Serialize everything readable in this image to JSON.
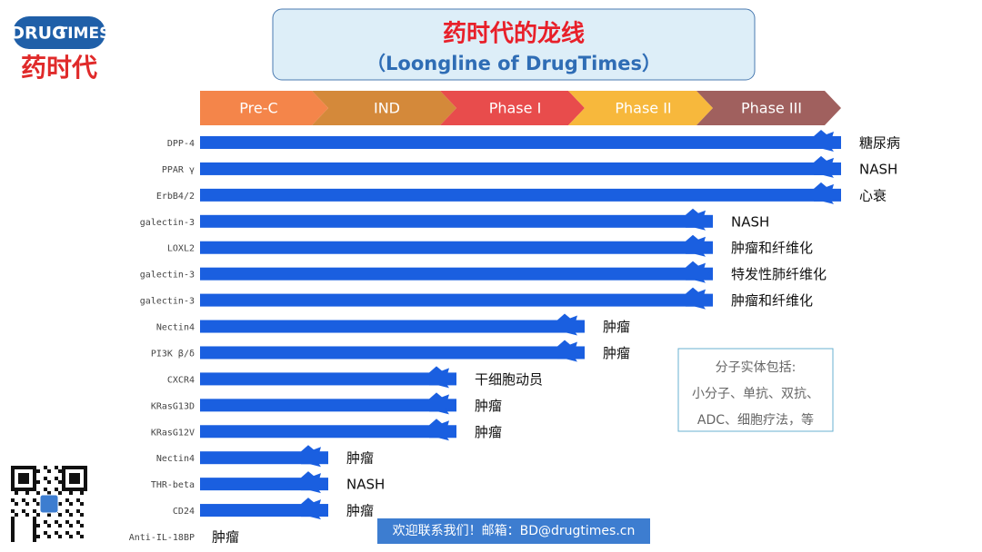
{
  "logo": {
    "brand_part1": "DRUG",
    "brand_part2": "TIMES",
    "name": "药时代"
  },
  "chart_data": {
    "type": "bar",
    "orientation": "horizontal",
    "title": "药时代的龙线",
    "subtitle": "（Loongline of DrugTimes）",
    "stages": [
      {
        "label": "Pre-C",
        "color": "#f4854a"
      },
      {
        "label": "IND",
        "color": "#d4893a"
      },
      {
        "label": "Phase I",
        "color": "#e84c4c"
      },
      {
        "label": "Phase II",
        "color": "#f7b83c"
      },
      {
        "label": "Phase III",
        "color": "#a0605e"
      }
    ],
    "categories": [
      "DPP-4",
      "PPAR γ",
      "ErbB4/2",
      "galectin-3",
      "LOXL2",
      "galectin-3",
      "galectin-3",
      "Nectin4",
      "PI3K β/δ",
      "CXCR4",
      "KRasG13D",
      "KRasG12V",
      "Nectin4",
      "THR-beta",
      "CD24",
      "Anti-IL-18BP"
    ],
    "values": [
      5,
      5,
      5,
      4,
      4,
      4,
      4,
      3,
      3,
      2,
      2,
      2,
      1,
      1,
      1,
      0
    ],
    "annotations": [
      "糖尿病",
      "NASH",
      "心衰",
      "NASH",
      "肿瘤和纤维化",
      "特发性肺纤维化",
      "肿瘤和纤维化",
      "肿瘤",
      "肿瘤",
      "干细胞动员",
      "肿瘤",
      "肿瘤",
      "肿瘤",
      "NASH",
      "肿瘤",
      "肿瘤"
    ],
    "color": "#1a5fe0",
    "xlim": [
      0,
      5
    ]
  },
  "note": {
    "lines": [
      "分子实体包括:",
      "小分子、单抗、双抗、",
      "ADC、细胞疗法，等"
    ]
  },
  "footer": "欢迎联系我们！邮箱：BD@drugtimes.cn"
}
